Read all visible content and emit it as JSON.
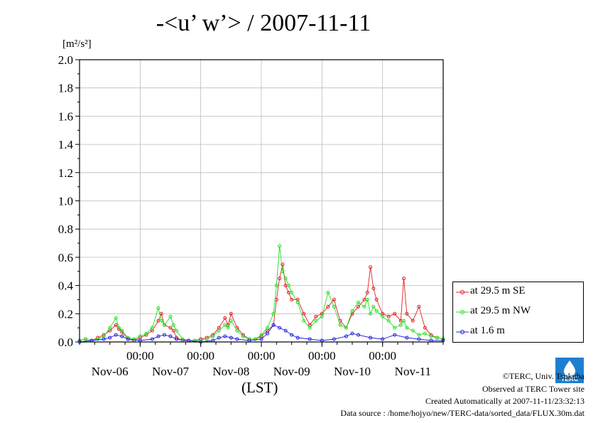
{
  "title": "-<u’ w’> / 2007-11-11",
  "unit_label": "[m²/s²]",
  "xlabel": "(LST)",
  "footer": {
    "copyright": "©TERC, Univ. Tsukuba",
    "observed": "Observed at TERC Tower site",
    "created": "Created Automatically at 2007-11-11/23:32:13",
    "source": "Data source : /home/hojyo/new/TERC-data/sorted_data/FLUX.30m.dat"
  },
  "logo_text": "TERC",
  "colors": {
    "red": "#e02020",
    "green": "#20e020",
    "blue": "#2020e0",
    "grid": "#bbbbbb"
  },
  "chart_data": {
    "type": "line",
    "title": "-<u’ w’> / 2007-11-11",
    "ylabel": "[m²/s²]",
    "xlabel": "(LST)",
    "ylim": [
      0,
      2.0
    ],
    "yticks": [
      "0.0",
      "0.2",
      "0.4",
      "0.6",
      "0.8",
      "1.0",
      "1.2",
      "1.4",
      "1.6",
      "1.8",
      "2.0"
    ],
    "xlim_days": [
      0,
      6
    ],
    "x_time_labels": [
      "00:00",
      "00:00",
      "00:00",
      "00:00",
      "00:00"
    ],
    "x_date_labels": [
      "Nov-06",
      "Nov-07",
      "Nov-08",
      "Nov-09",
      "Nov-10",
      "Nov-11"
    ],
    "grid": true,
    "legend_position": "right",
    "series": [
      {
        "name": "at 29.5 m SE",
        "color": "#e02020",
        "x": [
          0.0,
          0.1,
          0.2,
          0.3,
          0.4,
          0.5,
          0.6,
          0.65,
          0.7,
          0.8,
          0.9,
          1.0,
          1.1,
          1.2,
          1.3,
          1.35,
          1.4,
          1.5,
          1.55,
          1.6,
          1.7,
          1.8,
          1.9,
          2.0,
          2.1,
          2.2,
          2.3,
          2.4,
          2.45,
          2.5,
          2.6,
          2.7,
          2.8,
          2.9,
          3.0,
          3.1,
          3.2,
          3.25,
          3.3,
          3.35,
          3.4,
          3.45,
          3.5,
          3.6,
          3.7,
          3.8,
          3.9,
          4.0,
          4.1,
          4.2,
          4.3,
          4.4,
          4.5,
          4.6,
          4.7,
          4.75,
          4.8,
          4.85,
          4.9,
          5.0,
          5.1,
          5.2,
          5.3,
          5.35,
          5.4,
          5.5,
          5.6,
          5.7,
          5.8,
          5.9,
          6.0
        ],
        "values": [
          0.01,
          0.02,
          0.01,
          0.03,
          0.05,
          0.08,
          0.12,
          0.09,
          0.07,
          0.02,
          0.01,
          0.03,
          0.05,
          0.08,
          0.15,
          0.2,
          0.12,
          0.1,
          0.08,
          0.03,
          0.01,
          0.01,
          0.01,
          0.02,
          0.03,
          0.05,
          0.1,
          0.17,
          0.12,
          0.2,
          0.1,
          0.05,
          0.02,
          0.02,
          0.04,
          0.08,
          0.12,
          0.3,
          0.45,
          0.55,
          0.4,
          0.35,
          0.3,
          0.3,
          0.2,
          0.12,
          0.18,
          0.2,
          0.25,
          0.3,
          0.15,
          0.1,
          0.2,
          0.25,
          0.3,
          0.35,
          0.53,
          0.38,
          0.3,
          0.2,
          0.18,
          0.2,
          0.15,
          0.45,
          0.2,
          0.15,
          0.25,
          0.1,
          0.05,
          0.03,
          0.02
        ]
      },
      {
        "name": "at 29.5 m NW",
        "color": "#20e020",
        "x": [
          0.0,
          0.1,
          0.2,
          0.3,
          0.4,
          0.5,
          0.6,
          0.65,
          0.7,
          0.8,
          0.9,
          1.0,
          1.1,
          1.2,
          1.3,
          1.35,
          1.4,
          1.5,
          1.55,
          1.6,
          1.7,
          1.8,
          1.9,
          2.0,
          2.1,
          2.2,
          2.3,
          2.4,
          2.45,
          2.5,
          2.6,
          2.7,
          2.8,
          2.9,
          3.0,
          3.1,
          3.2,
          3.25,
          3.3,
          3.35,
          3.4,
          3.45,
          3.5,
          3.6,
          3.7,
          3.8,
          3.9,
          4.0,
          4.1,
          4.2,
          4.3,
          4.4,
          4.5,
          4.6,
          4.7,
          4.75,
          4.8,
          4.85,
          4.9,
          5.0,
          5.1,
          5.2,
          5.3,
          5.35,
          5.4,
          5.5,
          5.6,
          5.7,
          5.8,
          5.9,
          6.0
        ],
        "values": [
          0.01,
          0.02,
          0.01,
          0.02,
          0.04,
          0.1,
          0.17,
          0.1,
          0.08,
          0.03,
          0.02,
          0.04,
          0.06,
          0.1,
          0.24,
          0.15,
          0.12,
          0.18,
          0.12,
          0.08,
          0.02,
          0.01,
          0.01,
          0.01,
          0.02,
          0.04,
          0.08,
          0.12,
          0.1,
          0.15,
          0.08,
          0.04,
          0.02,
          0.02,
          0.05,
          0.1,
          0.2,
          0.4,
          0.68,
          0.5,
          0.45,
          0.4,
          0.35,
          0.28,
          0.15,
          0.1,
          0.15,
          0.18,
          0.35,
          0.25,
          0.12,
          0.1,
          0.22,
          0.28,
          0.25,
          0.3,
          0.2,
          0.25,
          0.22,
          0.18,
          0.15,
          0.1,
          0.12,
          0.15,
          0.1,
          0.08,
          0.05,
          0.06,
          0.04,
          0.03,
          0.02
        ]
      },
      {
        "name": "at 1.6 m",
        "color": "#2020e0",
        "x": [
          0.0,
          0.2,
          0.4,
          0.5,
          0.6,
          0.7,
          0.8,
          1.0,
          1.2,
          1.3,
          1.4,
          1.5,
          1.6,
          1.8,
          2.0,
          2.2,
          2.3,
          2.4,
          2.5,
          2.6,
          2.8,
          3.0,
          3.1,
          3.2,
          3.3,
          3.4,
          3.5,
          3.6,
          3.8,
          4.0,
          4.2,
          4.4,
          4.5,
          4.6,
          4.8,
          5.0,
          5.2,
          5.4,
          5.6,
          5.8,
          6.0
        ],
        "values": [
          0.0,
          0.01,
          0.02,
          0.03,
          0.05,
          0.04,
          0.02,
          0.01,
          0.02,
          0.04,
          0.05,
          0.04,
          0.02,
          0.01,
          0.0,
          0.01,
          0.03,
          0.04,
          0.03,
          0.02,
          0.01,
          0.02,
          0.06,
          0.12,
          0.1,
          0.08,
          0.05,
          0.03,
          0.02,
          0.01,
          0.02,
          0.04,
          0.06,
          0.05,
          0.03,
          0.02,
          0.05,
          0.03,
          0.02,
          0.01,
          0.01
        ]
      }
    ]
  }
}
